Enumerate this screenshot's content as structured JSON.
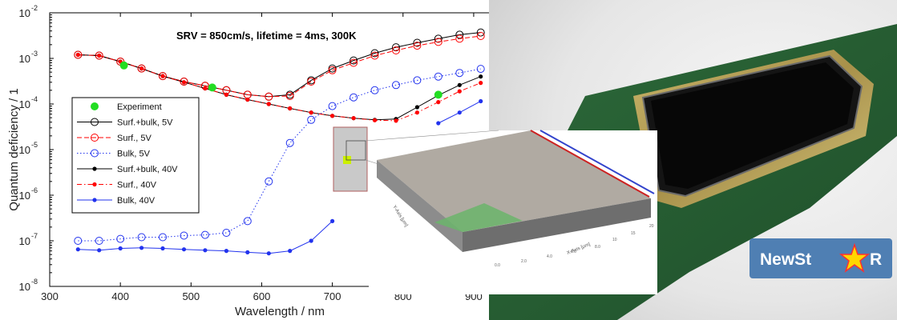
{
  "chart_data": {
    "type": "scatter",
    "title": "",
    "annotation": "SRV = 850cm/s, lifetime = 4ms, 300K",
    "xlabel": "Wavelength / nm",
    "ylabel": "Quantum deficiency / 1",
    "xlim": [
      300,
      950
    ],
    "ylim": [
      1e-08,
      0.01
    ],
    "yscale": "log",
    "xticks": [
      "300",
      "400",
      "500",
      "600",
      "700",
      "800",
      "900"
    ],
    "yticks": [
      {
        "base": "10",
        "exp": "-8"
      },
      {
        "base": "10",
        "exp": "-7"
      },
      {
        "base": "10",
        "exp": "-6"
      },
      {
        "base": "10",
        "exp": "-5"
      },
      {
        "base": "10",
        "exp": "-4"
      },
      {
        "base": "10",
        "exp": "-3"
      },
      {
        "base": "10",
        "exp": "-2"
      }
    ],
    "legend_position": "left",
    "series": [
      {
        "name": "Experiment",
        "color": "#22dd22",
        "marker": "filled",
        "line": "none",
        "x": [
          405,
          530,
          850
        ],
        "y": [
          0.0007,
          0.00023,
          0.00016
        ]
      },
      {
        "name": "Surf.+bulk, 5V",
        "color": "#000000",
        "marker": "open",
        "line": "solid",
        "x": [
          340,
          370,
          400,
          430,
          460,
          490,
          520,
          550,
          580,
          610,
          640,
          670,
          700,
          730,
          760,
          790,
          820,
          850,
          880,
          910
        ],
        "y": [
          0.0012,
          0.00115,
          0.00085,
          0.0006,
          0.00041,
          0.00031,
          0.00025,
          0.0002,
          0.00016,
          0.000145,
          0.00016,
          0.00033,
          0.0006,
          0.0009,
          0.0013,
          0.00175,
          0.0022,
          0.0027,
          0.0033,
          0.0037
        ]
      },
      {
        "name": "Surf., 5V",
        "color": "#ff0000",
        "marker": "open",
        "line": "dashed",
        "x": [
          340,
          370,
          400,
          430,
          460,
          490,
          520,
          550,
          580,
          610,
          640,
          670,
          700,
          730,
          760,
          790,
          820,
          850,
          880,
          910
        ],
        "y": [
          0.0012,
          0.00115,
          0.00085,
          0.0006,
          0.00041,
          0.00031,
          0.00025,
          0.0002,
          0.00016,
          0.000145,
          0.00015,
          0.00031,
          0.00055,
          0.0008,
          0.00115,
          0.0015,
          0.0019,
          0.0023,
          0.0027,
          0.0031
        ]
      },
      {
        "name": "Bulk, 5V",
        "color": "#2233ee",
        "marker": "open",
        "line": "dotted",
        "x": [
          340,
          370,
          400,
          430,
          460,
          490,
          520,
          550,
          580,
          610,
          640,
          670,
          700,
          730,
          760,
          790,
          820,
          850,
          880,
          910
        ],
        "y": [
          1e-07,
          1e-07,
          1.1e-07,
          1.2e-07,
          1.2e-07,
          1.3e-07,
          1.35e-07,
          1.5e-07,
          2.7e-07,
          2e-06,
          1.4e-05,
          4.5e-05,
          9e-05,
          0.00014,
          0.0002,
          0.00026,
          0.00033,
          0.0004,
          0.00048,
          0.00059
        ]
      },
      {
        "name": "Surf.+bulk, 40V",
        "color": "#000000",
        "marker": "filled",
        "line": "solid",
        "x": [
          340,
          370,
          400,
          430,
          460,
          490,
          520,
          550,
          580,
          610,
          640,
          670,
          700,
          730,
          760,
          790,
          820,
          850,
          880,
          910
        ],
        "y": [
          0.0012,
          0.00115,
          0.00085,
          0.0006,
          0.00041,
          0.0003,
          0.00022,
          0.00016,
          0.000125,
          0.0001,
          8e-05,
          6.5e-05,
          5.5e-05,
          4.9e-05,
          4.5e-05,
          4.7e-05,
          8.5e-05,
          0.000155,
          0.00026,
          0.0004
        ]
      },
      {
        "name": "Surf., 40V",
        "color": "#ff0000",
        "marker": "filled",
        "line": "dashdot",
        "x": [
          340,
          370,
          400,
          430,
          460,
          490,
          520,
          550,
          580,
          610,
          640,
          670,
          700,
          730,
          760,
          790,
          820,
          850,
          880,
          910
        ],
        "y": [
          0.0012,
          0.00115,
          0.00085,
          0.0006,
          0.00041,
          0.0003,
          0.00022,
          0.00016,
          0.000125,
          0.0001,
          8e-05,
          6.5e-05,
          5.5e-05,
          4.9e-05,
          4.4e-05,
          4.3e-05,
          6.5e-05,
          0.00011,
          0.00019,
          0.00029
        ]
      },
      {
        "name": "Bulk, 40V",
        "color": "#2233ee",
        "marker": "filled",
        "line": "solid",
        "x": [
          340,
          370,
          400,
          430,
          460,
          490,
          520,
          550,
          580,
          610,
          640,
          670,
          700
        ],
        "y": [
          6.5e-08,
          6.2e-08,
          6.8e-08,
          7e-08,
          6.8e-08,
          6.5e-08,
          6.2e-08,
          6e-08,
          5.6e-08,
          5.3e-08,
          6e-08,
          1e-07,
          2.7e-07
        ],
        "segment2": {
          "x": [
            850,
            880,
            910
          ],
          "y": [
            3.8e-05,
            6.5e-05,
            0.000115
          ]
        }
      }
    ]
  },
  "inset": {
    "ylabel": "Y-Axis [μm]",
    "xlabel": "X-Axis [μm]",
    "tick_values": [
      "0.0",
      "2.0",
      "4.0",
      "6.0",
      "8.0",
      "10",
      "15",
      "20"
    ]
  },
  "photo": {
    "logo_text_left": "NewSt",
    "logo_text_right": "R",
    "logo_star_colors": [
      "#ff3030",
      "#ffd700",
      "#30c030",
      "#3080ff"
    ]
  }
}
